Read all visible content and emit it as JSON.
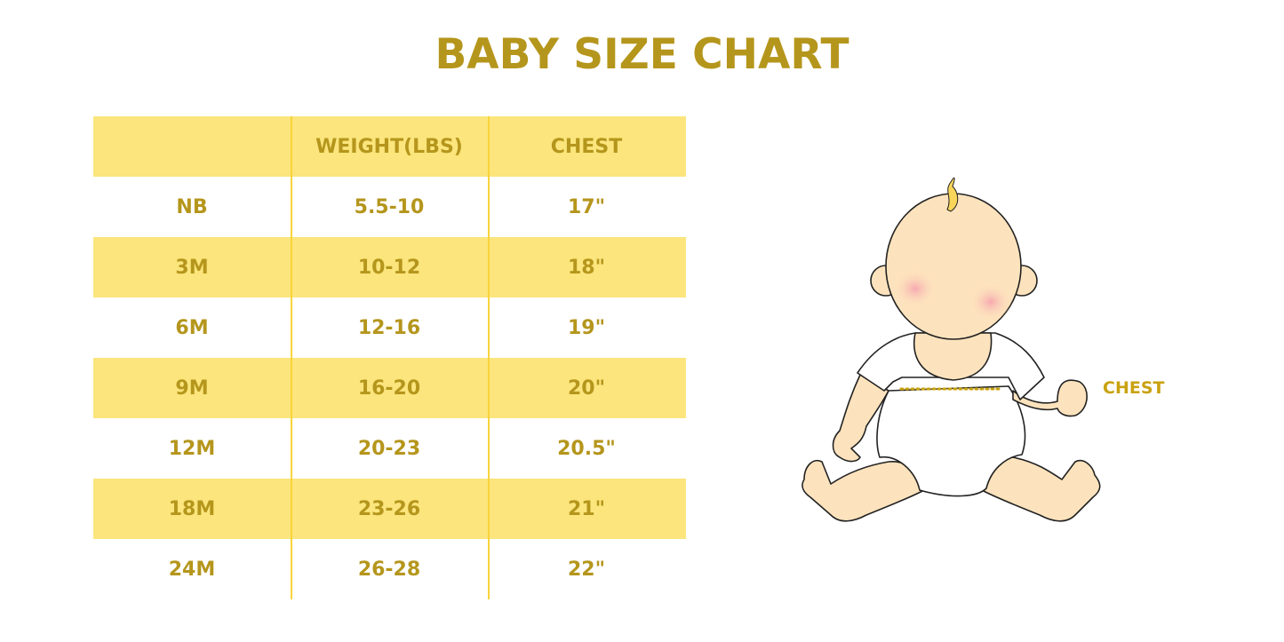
{
  "title": "BABY SIZE CHART",
  "table": {
    "headers": [
      "",
      "WEIGHT(LBS)",
      "CHEST"
    ],
    "rows": [
      [
        "NB",
        "5.5-10",
        "17\""
      ],
      [
        "3M",
        "10-12",
        "18\""
      ],
      [
        "6M",
        "12-16",
        "19\""
      ],
      [
        "9M",
        "16-20",
        "20\""
      ],
      [
        "12M",
        "20-23",
        "20.5\""
      ],
      [
        "18M",
        "23-26",
        "21\""
      ],
      [
        "24M",
        "26-28",
        "22\""
      ]
    ]
  },
  "illustration": {
    "chest_label": "CHEST"
  },
  "colors": {
    "text": "#b5961c",
    "band": "#fbe57c",
    "divider": "#f9d43a",
    "skin": "#fde3bd"
  }
}
